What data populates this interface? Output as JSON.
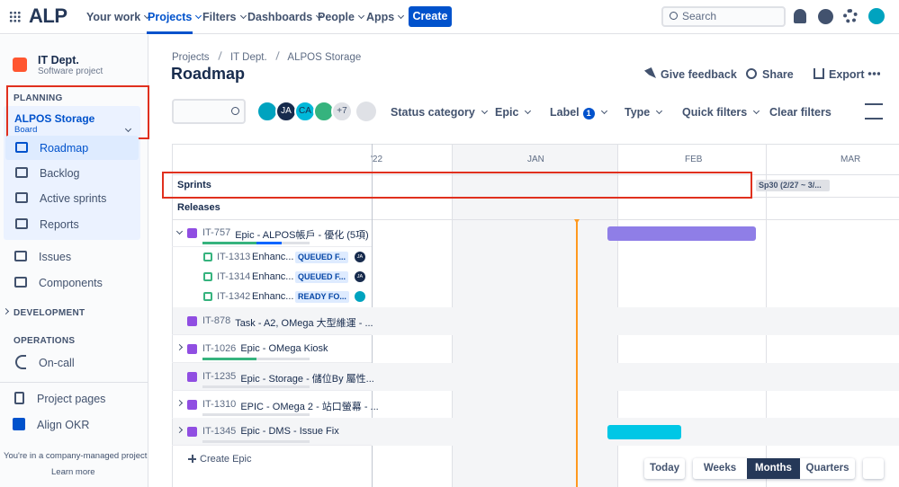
{
  "nav": {
    "logo": "ALP",
    "items": [
      "Your work",
      "Projects",
      "Filters",
      "Dashboards",
      "People",
      "Apps"
    ],
    "create": "Create",
    "search": "Search"
  },
  "sidebar": {
    "project": "IT Dept.",
    "project_type": "Software project",
    "planning": "PLANNING",
    "board": "ALPOS Storage",
    "board_type": "Board",
    "planning_items": [
      "Roadmap",
      "Backlog",
      "Active sprints",
      "Reports"
    ],
    "items": [
      "Issues",
      "Components"
    ],
    "development": "DEVELOPMENT",
    "operations": "OPERATIONS",
    "oncall": "On-call",
    "bottom_items": [
      "Project pages",
      "Align OKR"
    ],
    "footer": "You're in a company-managed project",
    "learn_more": "Learn more"
  },
  "header": {
    "breadcrumbs": [
      "Projects",
      "IT Dept.",
      "ALPOS Storage"
    ],
    "title": "Roadmap",
    "actions": [
      "Give feedback",
      "Share",
      "Export"
    ]
  },
  "filters": {
    "avatars": [
      "JA",
      "CA"
    ],
    "more": "+7",
    "items": [
      "Status category",
      "Epic",
      "Label",
      "Type",
      "Quick filters"
    ],
    "label_count": 1,
    "clear": "Clear filters"
  },
  "timeline": {
    "months": [
      "'22",
      "JAN",
      "FEB",
      "MAR"
    ],
    "sprints": "Sprints",
    "sprint_chip": "Sp30 (2/27 ~ 3/...",
    "releases": "Releases",
    "epics": [
      {
        "key": "IT-757",
        "summary": "Epic - ALPOS帳戶 - 優化 (5項)",
        "children": [
          {
            "key": "IT-1313",
            "summary": "Enhanc...",
            "status": "QUEUED F...",
            "assignee": "JA"
          },
          {
            "key": "IT-1314",
            "summary": "Enhanc...",
            "status": "QUEUED F...",
            "assignee": "JA"
          },
          {
            "key": "IT-1342",
            "summary": "Enhanc...",
            "status": "READY FO..."
          }
        ]
      },
      {
        "key": "IT-878",
        "summary": "Task - A2, OMega 大型維運 - ..."
      },
      {
        "key": "IT-1026",
        "summary": "Epic - OMega Kiosk"
      },
      {
        "key": "IT-1235",
        "summary": "Epic - Storage - 儲位By 屬性..."
      },
      {
        "key": "IT-1310",
        "summary": "EPIC - OMega 2 - 站口螢幕 - ..."
      },
      {
        "key": "IT-1345",
        "summary": "Epic - DMS - Issue Fix"
      }
    ],
    "create": "Create Epic"
  },
  "view": {
    "today": "Today",
    "scales": [
      "Weeks",
      "Months",
      "Quarters"
    ]
  }
}
